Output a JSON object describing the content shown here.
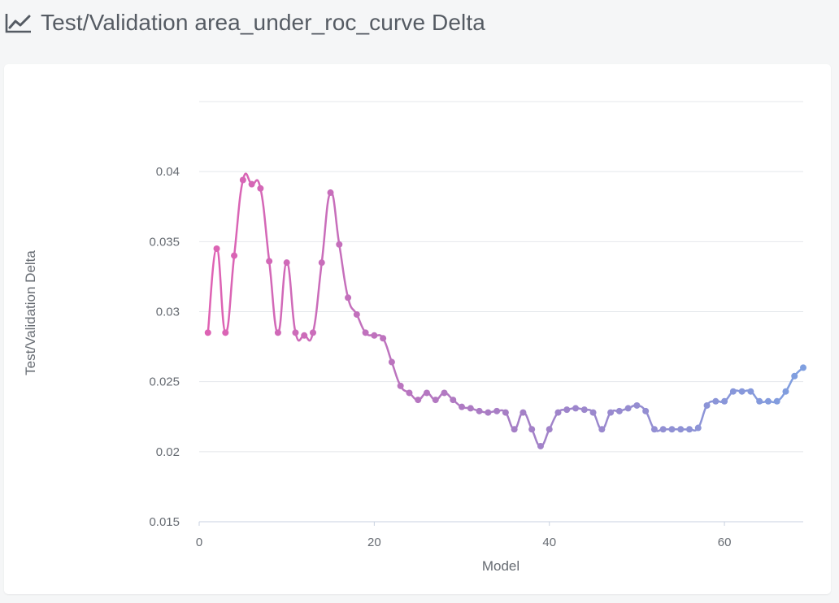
{
  "header": {
    "title": "Test/Validation area_under_roc_curve Delta",
    "icon": "line-chart-icon"
  },
  "colors": {
    "line_start": "#df62b3",
    "line_mid": "#a77ec5",
    "line_end": "#7f9fe0",
    "grid": "#e4e7eb",
    "axis": "#c9d2e0",
    "text": "#666b72",
    "background": "#f5f6f7"
  },
  "chart_data": {
    "type": "line",
    "xlabel": "Model",
    "ylabel": "Test/Validation Delta",
    "xlim": [
      0,
      69
    ],
    "ylim": [
      0.015,
      0.045
    ],
    "xticks": [
      0,
      20,
      40,
      60
    ],
    "xtick_labels": [
      "0",
      "20",
      "40",
      "60"
    ],
    "yticks": [
      0.015,
      0.02,
      0.025,
      0.03,
      0.035,
      0.04,
      0.045
    ],
    "ytick_labels": [
      "0.015",
      "0.02",
      "0.025",
      "0.03",
      "0.035",
      "0.04",
      ""
    ],
    "grid": true,
    "legend": "none",
    "x": [
      1,
      2,
      3,
      4,
      5,
      6,
      7,
      8,
      9,
      10,
      11,
      12,
      13,
      14,
      15,
      16,
      17,
      18,
      19,
      20,
      21,
      22,
      23,
      24,
      25,
      26,
      27,
      28,
      29,
      30,
      31,
      32,
      33,
      34,
      35,
      36,
      37,
      38,
      39,
      40,
      41,
      42,
      43,
      44,
      45,
      46,
      47,
      48,
      49,
      50,
      51,
      52,
      53,
      54,
      55,
      56,
      57,
      58,
      59,
      60,
      61,
      62,
      63,
      64,
      65,
      66,
      67,
      68,
      69
    ],
    "values": [
      0.0285,
      0.0345,
      0.0285,
      0.034,
      0.0394,
      0.0391,
      0.0388,
      0.0336,
      0.0285,
      0.0335,
      0.0285,
      0.0283,
      0.0285,
      0.0335,
      0.0385,
      0.0348,
      0.031,
      0.0298,
      0.0285,
      0.0283,
      0.0281,
      0.0264,
      0.0247,
      0.0242,
      0.0237,
      0.0242,
      0.0237,
      0.0242,
      0.0237,
      0.0232,
      0.0231,
      0.0229,
      0.0228,
      0.0229,
      0.0228,
      0.0216,
      0.0228,
      0.0216,
      0.0204,
      0.0216,
      0.0228,
      0.023,
      0.0231,
      0.023,
      0.0228,
      0.0216,
      0.0228,
      0.0229,
      0.0231,
      0.0233,
      0.0229,
      0.0216,
      0.0216,
      0.0216,
      0.0216,
      0.0216,
      0.0217,
      0.0233,
      0.0236,
      0.0236,
      0.0243,
      0.0243,
      0.0243,
      0.0236,
      0.0236,
      0.0236,
      0.0243,
      0.0254,
      0.026
    ]
  }
}
